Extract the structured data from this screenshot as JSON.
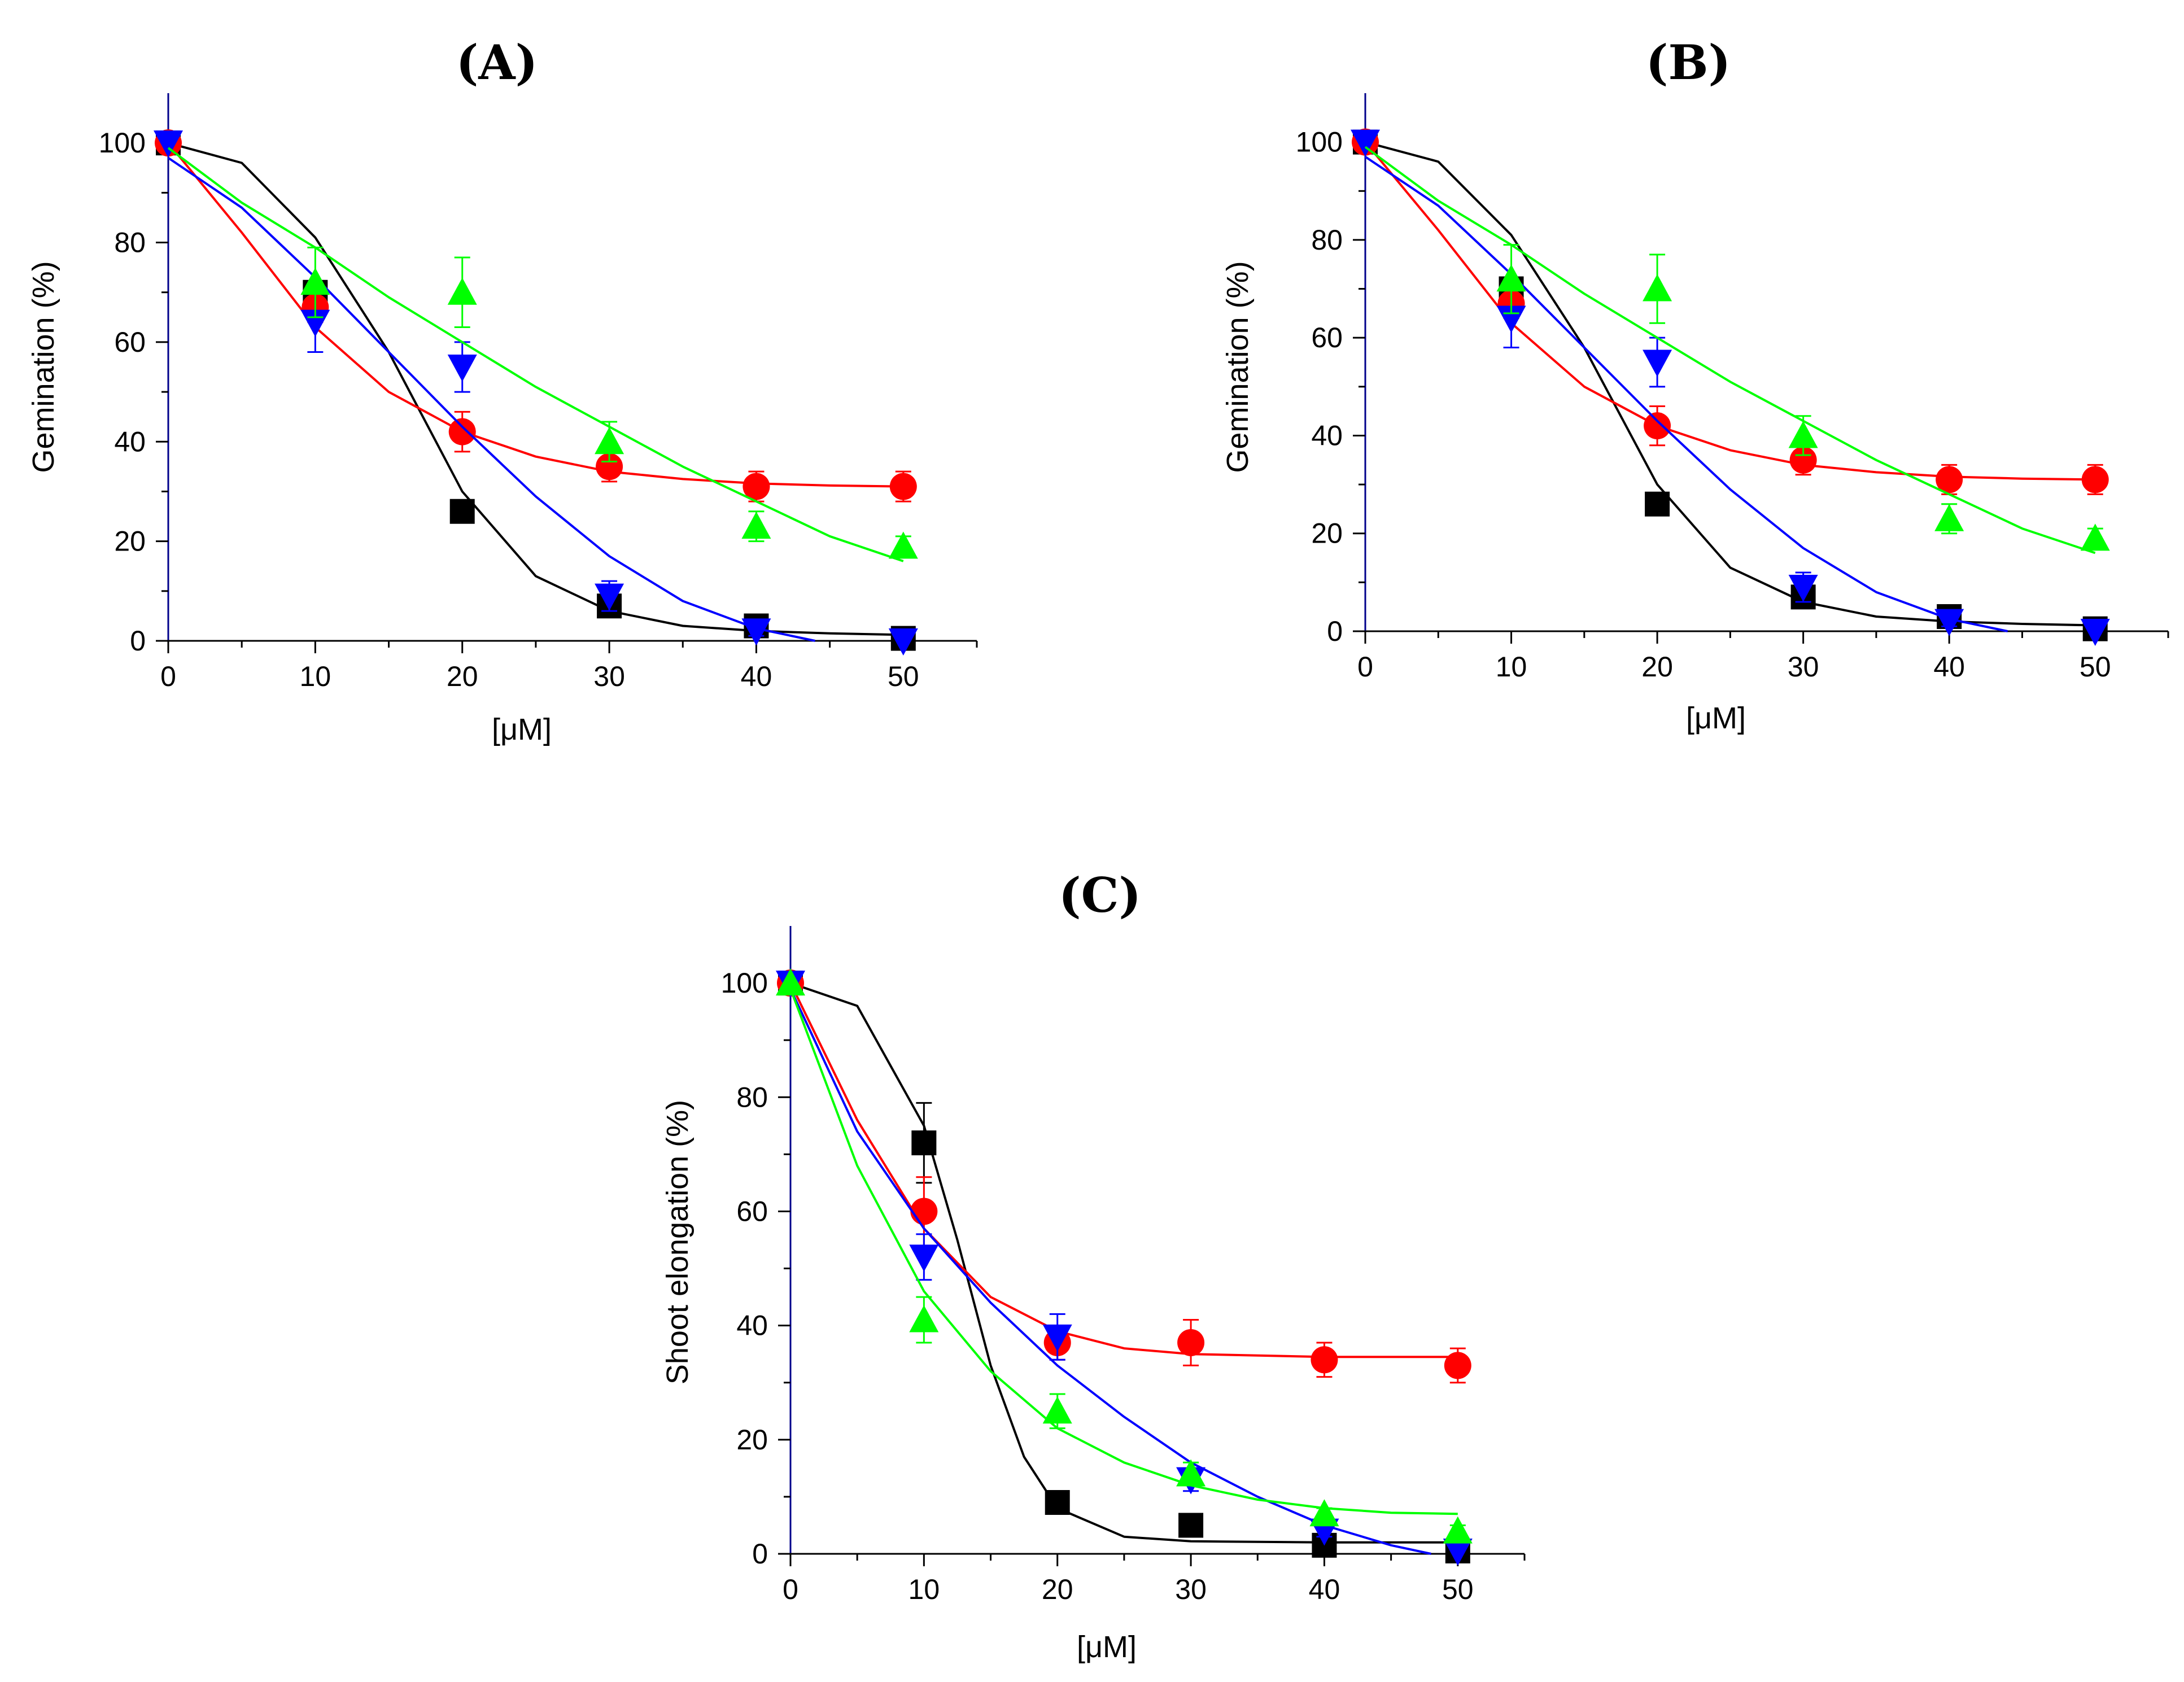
{
  "chart_data": [
    {
      "type": "scatter",
      "panel_label": "(A)",
      "xlabel": "[μM]",
      "ylabel": "Gemination  (%)",
      "xlim": [
        0,
        55
      ],
      "ylim": [
        0,
        110
      ],
      "xticks": [
        0,
        10,
        20,
        30,
        40,
        50
      ],
      "yticks": [
        0,
        20,
        40,
        60,
        80,
        100
      ],
      "x": [
        0,
        10,
        20,
        30,
        40,
        50
      ],
      "series": [
        {
          "color": "#000000",
          "marker": "square",
          "values": [
            100,
            70,
            26,
            7,
            3,
            0.5
          ],
          "errors": [
            0,
            0,
            2,
            1,
            1,
            0
          ],
          "fit": [
            [
              0,
              100
            ],
            [
              5,
              96
            ],
            [
              10,
              81
            ],
            [
              15,
              58
            ],
            [
              20,
              30
            ],
            [
              25,
              13
            ],
            [
              30,
              6
            ],
            [
              35,
              3
            ],
            [
              40,
              2
            ],
            [
              45,
              1.5
            ],
            [
              50,
              1.2
            ]
          ]
        },
        {
          "color": "#ff0000",
          "marker": "circle",
          "values": [
            100,
            67,
            42,
            35,
            31,
            31
          ],
          "errors": [
            0,
            3,
            4,
            3,
            3,
            3
          ],
          "fit": [
            [
              0,
              100
            ],
            [
              5,
              82
            ],
            [
              10,
              63
            ],
            [
              15,
              50
            ],
            [
              20,
              42
            ],
            [
              25,
              37
            ],
            [
              30,
              34
            ],
            [
              35,
              32.5
            ],
            [
              40,
              31.6
            ],
            [
              45,
              31.2
            ],
            [
              50,
              31
            ]
          ]
        },
        {
          "color": "#0000ff",
          "marker": "triangle-down",
          "values": [
            100,
            64,
            55,
            9,
            2,
            0
          ],
          "errors": [
            0,
            6,
            5,
            3,
            1,
            0
          ],
          "fit": [
            [
              0,
              97
            ],
            [
              5,
              87
            ],
            [
              10,
              73
            ],
            [
              15,
              58
            ],
            [
              20,
              43
            ],
            [
              25,
              29
            ],
            [
              30,
              17
            ],
            [
              35,
              8
            ],
            [
              40,
              2.5
            ],
            [
              44,
              0
            ]
          ]
        },
        {
          "color": "#00ff00",
          "marker": "triangle-up",
          "values": [
            72,
            70,
            40,
            23,
            19
          ],
          "x": [
            10,
            20,
            30,
            40,
            50
          ],
          "errors": [
            7,
            7,
            4,
            3,
            2
          ],
          "fit": [
            [
              0,
              99
            ],
            [
              5,
              88
            ],
            [
              10,
              79
            ],
            [
              15,
              69
            ],
            [
              20,
              60
            ],
            [
              25,
              51
            ],
            [
              30,
              43
            ],
            [
              35,
              35
            ],
            [
              40,
              28
            ],
            [
              45,
              21
            ],
            [
              50,
              16
            ]
          ]
        }
      ]
    },
    {
      "type": "scatter",
      "panel_label": "(B)",
      "xlabel": "[μM]",
      "ylabel": "Gemination  (%)",
      "xlim": [
        0,
        55
      ],
      "ylim": [
        0,
        110
      ],
      "xticks": [
        0,
        10,
        20,
        30,
        40,
        50
      ],
      "yticks": [
        0,
        20,
        40,
        60,
        80,
        100
      ],
      "x": [
        0,
        10,
        20,
        30,
        40,
        50
      ],
      "series": [
        {
          "color": "#000000",
          "marker": "square",
          "values": [
            100,
            70,
            26,
            7,
            3,
            0.5
          ],
          "errors": [
            0,
            0,
            2,
            1,
            1,
            0
          ],
          "fit": [
            [
              0,
              100
            ],
            [
              5,
              96
            ],
            [
              10,
              81
            ],
            [
              15,
              58
            ],
            [
              20,
              30
            ],
            [
              25,
              13
            ],
            [
              30,
              6
            ],
            [
              35,
              3
            ],
            [
              40,
              2
            ],
            [
              45,
              1.5
            ],
            [
              50,
              1.2
            ]
          ]
        },
        {
          "color": "#ff0000",
          "marker": "circle",
          "values": [
            100,
            67,
            42,
            35,
            31,
            31
          ],
          "errors": [
            0,
            3,
            4,
            3,
            3,
            3
          ],
          "fit": [
            [
              0,
              100
            ],
            [
              5,
              82
            ],
            [
              10,
              63
            ],
            [
              15,
              50
            ],
            [
              20,
              42
            ],
            [
              25,
              37
            ],
            [
              30,
              34
            ],
            [
              35,
              32.5
            ],
            [
              40,
              31.6
            ],
            [
              45,
              31.2
            ],
            [
              50,
              31
            ]
          ]
        },
        {
          "color": "#0000ff",
          "marker": "triangle-down",
          "values": [
            100,
            64,
            55,
            9,
            2,
            0
          ],
          "errors": [
            0,
            6,
            5,
            3,
            1,
            0
          ],
          "fit": [
            [
              0,
              97
            ],
            [
              5,
              87
            ],
            [
              10,
              73
            ],
            [
              15,
              58
            ],
            [
              20,
              43
            ],
            [
              25,
              29
            ],
            [
              30,
              17
            ],
            [
              35,
              8
            ],
            [
              40,
              2.5
            ],
            [
              44,
              0
            ]
          ]
        },
        {
          "color": "#00ff00",
          "marker": "triangle-up",
          "values": [
            72,
            70,
            40,
            23,
            19
          ],
          "x": [
            10,
            20,
            30,
            40,
            50
          ],
          "errors": [
            7,
            7,
            4,
            3,
            2
          ],
          "fit": [
            [
              0,
              99
            ],
            [
              5,
              88
            ],
            [
              10,
              79
            ],
            [
              15,
              69
            ],
            [
              20,
              60
            ],
            [
              25,
              51
            ],
            [
              30,
              43
            ],
            [
              35,
              35
            ],
            [
              40,
              28
            ],
            [
              45,
              21
            ],
            [
              50,
              16
            ]
          ]
        }
      ]
    },
    {
      "type": "scatter",
      "panel_label": "(C)",
      "xlabel": "[μM]",
      "ylabel": "Shoot elongation  (%)",
      "xlim": [
        0,
        55
      ],
      "ylim": [
        0,
        110
      ],
      "xticks": [
        0,
        10,
        20,
        30,
        40,
        50
      ],
      "yticks": [
        0,
        20,
        40,
        60,
        80,
        100
      ],
      "x": [
        0,
        10,
        20,
        30,
        40,
        50
      ],
      "series": [
        {
          "color": "#000000",
          "marker": "square",
          "values": [
            100,
            72,
            9,
            5,
            1.5,
            0.5
          ],
          "errors": [
            0,
            7,
            0,
            0,
            0,
            0
          ],
          "fit": [
            [
              0,
              100
            ],
            [
              5,
              96
            ],
            [
              10,
              75
            ],
            [
              12.5,
              55
            ],
            [
              15,
              33
            ],
            [
              17.5,
              17
            ],
            [
              20,
              8
            ],
            [
              25,
              3
            ],
            [
              30,
              2.2
            ],
            [
              40,
              2
            ],
            [
              50,
              2
            ]
          ]
        },
        {
          "color": "#ff0000",
          "marker": "circle",
          "values": [
            100,
            60,
            37,
            37,
            34,
            33
          ],
          "errors": [
            0,
            6,
            3,
            4,
            3,
            3
          ],
          "fit": [
            [
              0,
              100
            ],
            [
              5,
              76
            ],
            [
              10,
              57
            ],
            [
              15,
              45
            ],
            [
              20,
              39
            ],
            [
              25,
              36
            ],
            [
              30,
              35
            ],
            [
              40,
              34.5
            ],
            [
              50,
              34.5
            ]
          ]
        },
        {
          "color": "#0000ff",
          "marker": "triangle-down",
          "values": [
            100,
            52,
            38,
            13,
            4,
            0.5
          ],
          "errors": [
            0,
            4,
            4,
            2,
            1,
            0
          ],
          "fit": [
            [
              0,
              99
            ],
            [
              5,
              74
            ],
            [
              10,
              57
            ],
            [
              15,
              44
            ],
            [
              20,
              33
            ],
            [
              25,
              24
            ],
            [
              30,
              16
            ],
            [
              35,
              10
            ],
            [
              40,
              5
            ],
            [
              45,
              1.5
            ],
            [
              48,
              0
            ]
          ]
        },
        {
          "color": "#00ff00",
          "marker": "triangle-up",
          "values": [
            100,
            41,
            25,
            14,
            7,
            4
          ],
          "errors": [
            0,
            4,
            3,
            2,
            1,
            1
          ],
          "fit": [
            [
              0,
              99
            ],
            [
              5,
              68
            ],
            [
              10,
              46
            ],
            [
              15,
              32
            ],
            [
              20,
              22
            ],
            [
              25,
              16
            ],
            [
              30,
              12
            ],
            [
              35,
              9.5
            ],
            [
              40,
              8
            ],
            [
              45,
              7.2
            ],
            [
              50,
              7
            ]
          ]
        }
      ]
    }
  ]
}
